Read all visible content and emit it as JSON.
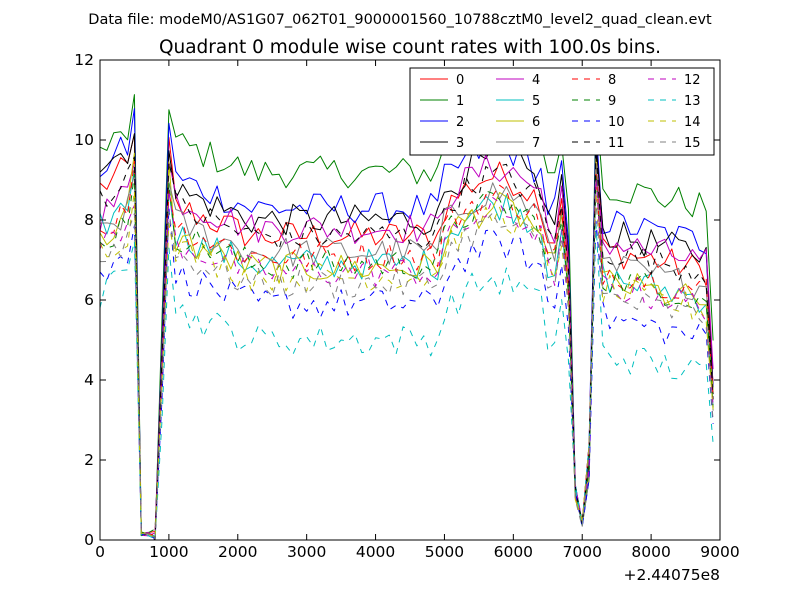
{
  "figure": {
    "suptitle": "Data file: modeM0/AS1G07_062T01_9000001560_10788cztM0_level2_quad_clean.evt"
  },
  "chart_data": {
    "type": "line",
    "title": "Quadrant 0 module wise count rates with 100.0s bins.",
    "xlabel": "",
    "ylabel": "",
    "xlim": [
      0,
      9000
    ],
    "ylim": [
      0,
      12
    ],
    "x_offset_label": "+2.44075e8",
    "xticks": [
      0,
      1000,
      2000,
      3000,
      4000,
      5000,
      6000,
      7000,
      8000,
      9000
    ],
    "yticks": [
      0,
      2,
      4,
      6,
      8,
      10,
      12
    ],
    "legend_position": "top-right",
    "legend_columns": 4,
    "x": [
      0,
      100,
      200,
      300,
      400,
      500,
      600,
      700,
      800,
      900,
      1000,
      1100,
      1200,
      1300,
      1400,
      1500,
      1600,
      1700,
      1800,
      1900,
      2000,
      2100,
      2200,
      2300,
      2400,
      2500,
      2600,
      2700,
      2800,
      2900,
      3000,
      3100,
      3200,
      3300,
      3400,
      3500,
      3600,
      3700,
      3800,
      3900,
      4000,
      4100,
      4200,
      4300,
      4400,
      4500,
      4600,
      4700,
      4800,
      4900,
      5000,
      5100,
      5200,
      5300,
      5400,
      5500,
      5600,
      5700,
      5800,
      5900,
      6000,
      6100,
      6200,
      6300,
      6400,
      6500,
      6600,
      6700,
      6800,
      6900,
      7000,
      7100,
      7200,
      7300,
      7400,
      7500,
      7600,
      7700,
      7800,
      7900,
      8000,
      8100,
      8200,
      8300,
      8400,
      8500,
      8600,
      8700,
      8800,
      8900
    ],
    "series": [
      {
        "name": "0",
        "color": "#ff0000",
        "dash": "solid",
        "level": 7.6,
        "start": 8.8,
        "peak": 10.0
      },
      {
        "name": "1",
        "color": "#008000",
        "dash": "solid",
        "level": 9.2,
        "start": 9.7,
        "peak": 10.9
      },
      {
        "name": "2",
        "color": "#0000ff",
        "dash": "solid",
        "level": 8.3,
        "start": 9.3,
        "peak": 10.6
      },
      {
        "name": "3",
        "color": "#000000",
        "dash": "solid",
        "level": 8.0,
        "start": 9.4,
        "peak": 10.3
      },
      {
        "name": "4",
        "color": "#bf00bf",
        "dash": "solid",
        "level": 7.8,
        "start": 8.1,
        "peak": 9.6
      },
      {
        "name": "5",
        "color": "#00bfbf",
        "dash": "solid",
        "level": 6.9,
        "start": 7.8,
        "peak": 9.3
      },
      {
        "name": "6",
        "color": "#bfbf00",
        "dash": "solid",
        "level": 6.8,
        "start": 7.4,
        "peak": 9.4
      },
      {
        "name": "7",
        "color": "#808080",
        "dash": "solid",
        "level": 7.2,
        "start": 7.6,
        "peak": 9.0
      },
      {
        "name": "8",
        "color": "#ff0000",
        "dash": "dashed",
        "level": 7.1,
        "start": 7.7,
        "peak": 9.2
      },
      {
        "name": "9",
        "color": "#008000",
        "dash": "dashed",
        "level": 6.9,
        "start": 7.3,
        "peak": 9.3
      },
      {
        "name": "10",
        "color": "#0000ff",
        "dash": "dashed",
        "level": 5.9,
        "start": 6.5,
        "peak": 8.2
      },
      {
        "name": "11",
        "color": "#000000",
        "dash": "dashed",
        "level": 7.6,
        "start": 8.6,
        "peak": 9.6
      },
      {
        "name": "12",
        "color": "#bf00bf",
        "dash": "dashed",
        "level": 6.7,
        "start": 7.2,
        "peak": 8.7
      },
      {
        "name": "13",
        "color": "#00bfbf",
        "dash": "dashed",
        "level": 5.0,
        "start": 6.0,
        "peak": 7.8
      },
      {
        "name": "14",
        "color": "#bfbf00",
        "dash": "dashed",
        "level": 6.6,
        "start": 7.2,
        "peak": 8.5
      },
      {
        "name": "15",
        "color": "#808080",
        "dash": "dashed",
        "level": 6.4,
        "start": 7.0,
        "peak": 8.3
      }
    ],
    "dips": [
      {
        "range": [
          600,
          800
        ],
        "values": [
          0.1,
          0.0,
          0.0
        ]
      },
      {
        "range": [
          6900,
          7100
        ],
        "values": [
          1.1,
          0.0,
          1.0
        ]
      }
    ],
    "features": [
      {
        "x": 500,
        "description": "pre-dip peak"
      },
      {
        "x": 1000,
        "description": "post-dip recovery peak"
      },
      {
        "x": 6000,
        "description": "broad hump"
      },
      {
        "x": 6700,
        "description": "sharp spike before second dip"
      },
      {
        "x": 7200,
        "description": "post-dip peak"
      }
    ]
  }
}
